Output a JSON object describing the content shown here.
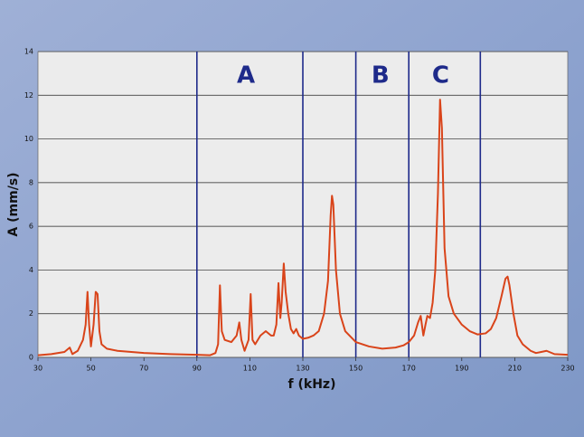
{
  "chart_data": {
    "type": "line",
    "xlabel": "f (kHz)",
    "ylabel": "A (mm/s)",
    "xlim": [
      30,
      230
    ],
    "ylim": [
      0,
      14
    ],
    "xticks": [
      30,
      50,
      70,
      90,
      110,
      130,
      150,
      170,
      190,
      210,
      230
    ],
    "yticks": [
      0,
      2,
      4,
      6,
      8,
      10,
      12,
      14
    ],
    "grid": true,
    "series": [
      {
        "color": "#d9441a",
        "x": [
          30,
          35,
          40,
          42,
          43,
          45,
          47,
          48,
          48.7,
          49.3,
          50,
          51,
          51.8,
          52.5,
          53.2,
          54,
          56,
          60,
          70,
          80,
          90,
          95,
          97,
          98,
          98.7,
          99.4,
          100.5,
          103,
          105,
          106,
          106.8,
          108,
          109.5,
          110.3,
          111,
          112,
          114,
          116,
          118,
          119,
          120,
          120.8,
          121.5,
          122,
          122.8,
          123.5,
          124.5,
          125.5,
          126.5,
          127.5,
          128.5,
          130,
          132,
          134,
          136,
          138,
          139.5,
          140.5,
          141,
          141.5,
          142.5,
          144,
          146,
          150,
          155,
          160,
          165,
          168,
          170,
          172,
          173.5,
          174.5,
          175.5,
          176.3,
          177,
          178,
          179,
          180,
          181,
          181.8,
          182.5,
          183.5,
          185,
          187,
          190,
          193,
          196,
          199,
          201,
          203,
          205,
          206.5,
          207.3,
          208,
          209.5,
          211,
          213,
          216,
          218,
          220,
          222,
          225,
          230
        ],
        "values": [
          0.1,
          0.15,
          0.25,
          0.45,
          0.15,
          0.3,
          0.8,
          1.5,
          3.0,
          1.5,
          0.5,
          1.5,
          3.0,
          2.9,
          1.2,
          0.6,
          0.4,
          0.3,
          0.2,
          0.15,
          0.12,
          0.1,
          0.2,
          0.6,
          3.3,
          1.2,
          0.8,
          0.7,
          1.0,
          1.6,
          0.8,
          0.3,
          0.8,
          2.9,
          0.8,
          0.6,
          1.0,
          1.2,
          1.0,
          1.0,
          1.5,
          3.4,
          1.8,
          2.5,
          4.3,
          3.0,
          2.0,
          1.3,
          1.1,
          1.3,
          1.0,
          0.85,
          0.9,
          1.0,
          1.2,
          2.0,
          3.5,
          6.5,
          7.4,
          7.0,
          4.0,
          2.0,
          1.2,
          0.7,
          0.5,
          0.4,
          0.45,
          0.55,
          0.7,
          1.0,
          1.6,
          1.9,
          1.0,
          1.5,
          1.9,
          1.8,
          2.5,
          4.0,
          7.5,
          11.8,
          10.5,
          5.0,
          2.8,
          2.0,
          1.5,
          1.2,
          1.05,
          1.1,
          1.3,
          1.8,
          2.8,
          3.6,
          3.7,
          3.3,
          2.0,
          1.0,
          0.6,
          0.3,
          0.2,
          0.25,
          0.3,
          0.15,
          0.12
        ]
      }
    ],
    "vlines": [
      90,
      130,
      150,
      170,
      197
    ],
    "vline_color": "#1e2a8a",
    "annotations": [
      {
        "text": "A",
        "x": 108.5
      },
      {
        "text": "B",
        "x": 159.3
      },
      {
        "text": "C",
        "x": 182
      }
    ]
  }
}
